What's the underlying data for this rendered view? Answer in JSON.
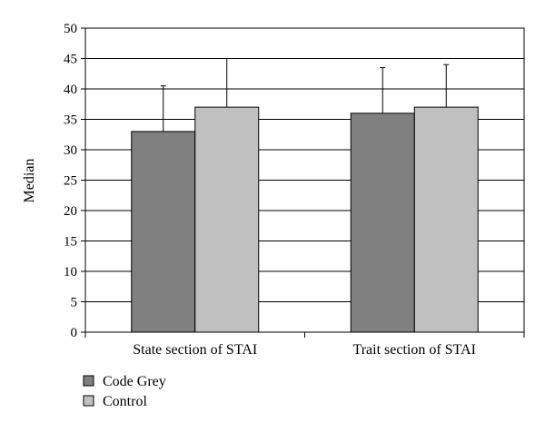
{
  "chart_data": {
    "type": "bar",
    "title": "",
    "xlabel": "",
    "ylabel": "Median",
    "ylim": [
      0,
      50
    ],
    "yticks": [
      0,
      5,
      10,
      15,
      20,
      25,
      30,
      35,
      40,
      45,
      50
    ],
    "grid": true,
    "legend_position": "bottom-left",
    "categories": [
      "State section of STAI",
      "Trait section of STAI"
    ],
    "series": [
      {
        "name": "Code Grey",
        "color": "#808080",
        "values": [
          33,
          36
        ],
        "error_upper": [
          40.5,
          43.5
        ]
      },
      {
        "name": "Control",
        "color": "#c0c0c0",
        "values": [
          37,
          37
        ],
        "error_upper": [
          45,
          44
        ]
      }
    ]
  }
}
